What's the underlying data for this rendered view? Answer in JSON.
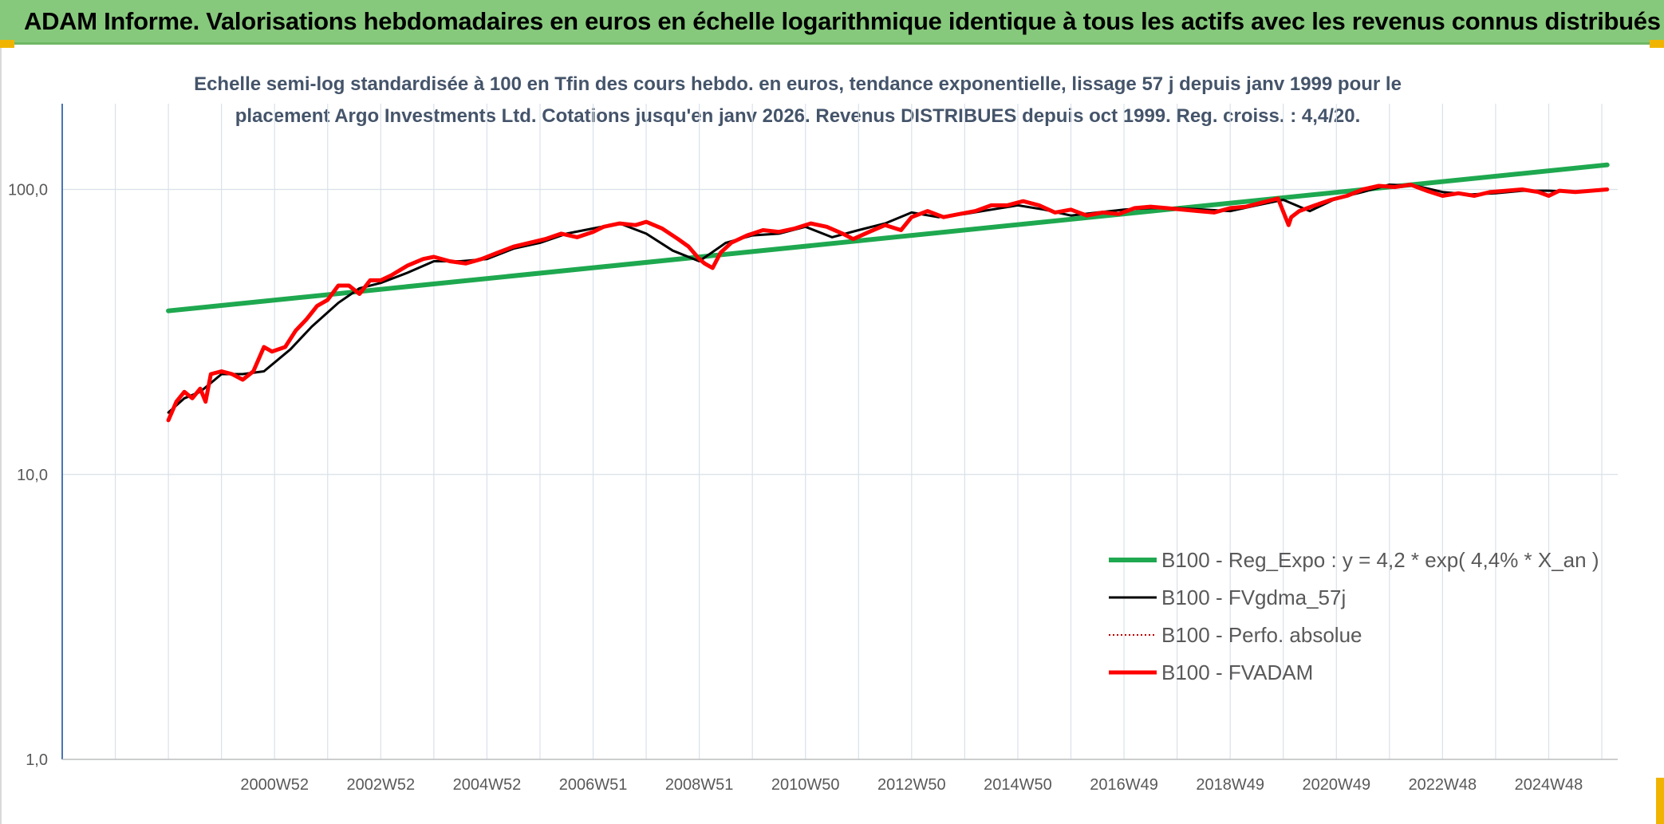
{
  "header": {
    "title": "ADAM Informe. Valorisations hebdomadaires en euros en échelle logarithmique identique à tous les actifs avec les revenus connus distribués"
  },
  "colors": {
    "banner": "#86c97c",
    "trend": "#1ea84f",
    "smooth": "#000000",
    "perf": "#c00000",
    "fvadam": "#ff0000",
    "grid": "#d9e1ea",
    "subtitle": "#44546a"
  },
  "chart_data": {
    "type": "line",
    "title_line1": "Echelle semi-log standardisée à 100 en Tfin des cours hebdo. en euros, tendance exponentielle, lissage 57 j depuis janv 1999 pour le",
    "title_line2": "placement Argo Investments Ltd. Cotations jusqu'en janv 2026. Revenus DISTRIBUES depuis oct 1999. Reg. croiss. : 4,4/20.",
    "yscale": "log",
    "ylim": [
      1,
      200
    ],
    "y_ticks": [
      "1,0",
      "10,0",
      "100,0"
    ],
    "y_tick_values": [
      1,
      10,
      100
    ],
    "xlim": [
      1997.0,
      2026.3
    ],
    "x_ticks": [
      "2000W52",
      "2002W52",
      "2004W52",
      "2006W51",
      "2008W51",
      "2010W50",
      "2012W50",
      "2014W50",
      "2016W49",
      "2018W49",
      "2020W49",
      "2022W48",
      "2024W48"
    ],
    "x_tick_values": [
      2001.0,
      2003.0,
      2005.0,
      2007.0,
      2009.0,
      2011.0,
      2013.0,
      2015.0,
      2017.0,
      2019.0,
      2021.0,
      2023.0,
      2025.0
    ],
    "legend_position": "bottom-right",
    "series": [
      {
        "name": "B100 - Reg_Expo : y = 4,2 * exp( 4,4% *  X_an )",
        "key": "trend",
        "style": "solid-thick",
        "x": [
          1999.0,
          2026.1
        ],
        "y": [
          37.5,
          122
        ]
      },
      {
        "name": "B100 - FVgdma_57j",
        "key": "smooth",
        "style": "solid",
        "x": [
          1999.0,
          1999.3,
          1999.6,
          2000.0,
          2000.4,
          2000.8,
          2001.3,
          2001.7,
          2002.2,
          2002.6,
          2003.0,
          2003.5,
          2004.0,
          2004.5,
          2005.0,
          2005.5,
          2006.0,
          2006.5,
          2007.0,
          2007.5,
          2008.0,
          2008.5,
          2009.0,
          2009.5,
          2010.0,
          2010.5,
          2011.0,
          2011.5,
          2012.0,
          2012.5,
          2013.0,
          2013.5,
          2014.0,
          2014.5,
          2015.0,
          2015.5,
          2016.0,
          2016.5,
          2017.0,
          2017.5,
          2018.0,
          2018.5,
          2019.0,
          2019.5,
          2020.0,
          2020.5,
          2021.0,
          2021.5,
          2022.0,
          2022.5,
          2023.0,
          2023.5,
          2024.0,
          2024.5,
          2025.0,
          2025.5,
          2026.1
        ],
        "y": [
          16.5,
          18.5,
          19.5,
          22.5,
          22.5,
          23,
          27.5,
          33,
          40,
          45,
          47,
          51,
          56,
          56,
          57,
          62,
          65,
          70,
          73,
          76,
          70,
          61,
          56,
          65,
          69,
          70,
          74,
          68,
          72,
          76,
          83,
          80,
          82,
          85,
          88,
          85,
          81,
          83,
          85,
          86,
          86,
          85,
          84,
          88,
          92,
          84,
          93,
          98,
          104,
          103,
          98,
          96,
          97,
          99,
          99,
          98,
          100
        ]
      },
      {
        "name": "B100 - Perfo. absolue",
        "key": "perf",
        "style": "dotted",
        "x": [],
        "y": []
      },
      {
        "name": "B100 - FVADAM",
        "key": "fvadam",
        "style": "solid-thick",
        "x": [
          1999.0,
          1999.15,
          1999.3,
          1999.45,
          1999.6,
          1999.7,
          1999.8,
          2000.0,
          2000.2,
          2000.4,
          2000.6,
          2000.8,
          2000.95,
          2001.2,
          2001.4,
          2001.6,
          2001.8,
          2002.0,
          2002.2,
          2002.4,
          2002.6,
          2002.8,
          2003.0,
          2003.2,
          2003.5,
          2003.8,
          2004.0,
          2004.3,
          2004.6,
          2004.9,
          2005.2,
          2005.5,
          2005.8,
          2006.1,
          2006.4,
          2006.7,
          2007.0,
          2007.2,
          2007.5,
          2007.8,
          2008.0,
          2008.3,
          2008.6,
          2008.8,
          2009.0,
          2009.1,
          2009.25,
          2009.4,
          2009.6,
          2009.9,
          2010.2,
          2010.5,
          2010.8,
          2011.1,
          2011.4,
          2011.7,
          2011.9,
          2012.2,
          2012.5,
          2012.8,
          2013.0,
          2013.3,
          2013.6,
          2013.9,
          2014.2,
          2014.5,
          2014.8,
          2015.1,
          2015.4,
          2015.7,
          2016.0,
          2016.3,
          2016.6,
          2016.9,
          2017.2,
          2017.5,
          2017.8,
          2018.1,
          2018.4,
          2018.7,
          2019.0,
          2019.3,
          2019.6,
          2019.9,
          2020.1,
          2020.15,
          2020.3,
          2020.6,
          2020.9,
          2021.2,
          2021.5,
          2021.8,
          2022.1,
          2022.4,
          2022.7,
          2023.0,
          2023.3,
          2023.6,
          2023.9,
          2024.2,
          2024.5,
          2024.8,
          2025.0,
          2025.2,
          2025.5,
          2025.8,
          2026.1
        ],
        "y": [
          15.5,
          18,
          19.5,
          18.5,
          20,
          18,
          22.5,
          23,
          22.5,
          21.5,
          23,
          28,
          27,
          28,
          32,
          35,
          39,
          41,
          46,
          46,
          43,
          48,
          48,
          50,
          54,
          57,
          58,
          56,
          55,
          57,
          60,
          63,
          65,
          67,
          70,
          68,
          71,
          74,
          76,
          75,
          77,
          73,
          67,
          63,
          57,
          55,
          53,
          60,
          65,
          69,
          72,
          71,
          73,
          76,
          74,
          70,
          67,
          71,
          75,
          72,
          80,
          84,
          80,
          82,
          84,
          88,
          88,
          91,
          88,
          83,
          85,
          81,
          83,
          82,
          86,
          87,
          86,
          85,
          84,
          83,
          86,
          87,
          90,
          93,
          75,
          80,
          84,
          88,
          92,
          95,
          100,
          103,
          102,
          104,
          99,
          95,
          97,
          95,
          98,
          99,
          100,
          98,
          95,
          99,
          98,
          99,
          100
        ]
      }
    ]
  }
}
